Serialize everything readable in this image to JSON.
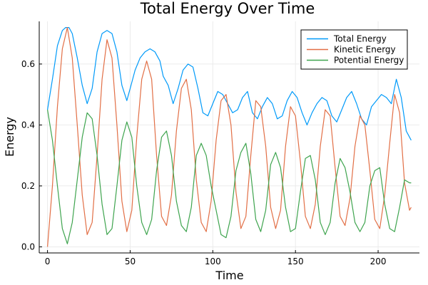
{
  "chart_data": {
    "type": "line",
    "title": "Total Energy Over Time",
    "xlabel": "Time",
    "ylabel": "Energy",
    "xlim": [
      -5,
      225
    ],
    "ylim": [
      -0.02,
      0.74
    ],
    "xticks": [
      0,
      50,
      100,
      150,
      200
    ],
    "yticks": [
      0.0,
      0.2,
      0.4,
      0.6
    ],
    "xtick_labels": [
      "0",
      "50",
      "100",
      "150",
      "200"
    ],
    "ytick_labels": [
      "0.0",
      "0.2",
      "0.4",
      "0.6"
    ],
    "grid": true,
    "legend_position": "top-right",
    "series": [
      {
        "name": "Total Energy",
        "color": "#009AF9",
        "x": [
          0,
          3,
          6,
          9,
          11,
          13,
          15,
          18,
          21,
          24,
          27,
          30,
          33,
          36,
          39,
          42,
          45,
          48,
          50,
          53,
          56,
          59,
          62,
          65,
          68,
          70,
          73,
          76,
          79,
          82,
          85,
          88,
          91,
          94,
          97,
          100,
          103,
          106,
          109,
          112,
          115,
          118,
          121,
          124,
          127,
          130,
          133,
          136,
          139,
          142,
          145,
          148,
          151,
          154,
          157,
          160,
          163,
          166,
          169,
          172,
          175,
          178,
          181,
          184,
          187,
          190,
          193,
          196,
          199,
          202,
          205,
          208,
          211,
          214,
          217,
          220
        ],
        "values": [
          0.45,
          0.55,
          0.66,
          0.71,
          0.72,
          0.72,
          0.7,
          0.62,
          0.53,
          0.47,
          0.52,
          0.64,
          0.7,
          0.71,
          0.7,
          0.64,
          0.53,
          0.48,
          0.52,
          0.58,
          0.62,
          0.64,
          0.65,
          0.64,
          0.61,
          0.56,
          0.53,
          0.47,
          0.52,
          0.58,
          0.6,
          0.59,
          0.52,
          0.44,
          0.43,
          0.47,
          0.51,
          0.5,
          0.47,
          0.44,
          0.45,
          0.49,
          0.51,
          0.44,
          0.42,
          0.46,
          0.49,
          0.47,
          0.42,
          0.43,
          0.48,
          0.51,
          0.49,
          0.44,
          0.4,
          0.44,
          0.47,
          0.49,
          0.48,
          0.43,
          0.41,
          0.45,
          0.49,
          0.51,
          0.47,
          0.42,
          0.4,
          0.46,
          0.48,
          0.5,
          0.49,
          0.47,
          0.55,
          0.49,
          0.38,
          0.35
        ]
      },
      {
        "name": "Kinetic Energy",
        "color": "#E26F46",
        "x": [
          0,
          3,
          6,
          9,
          12,
          15,
          18,
          21,
          24,
          27,
          30,
          33,
          36,
          39,
          42,
          45,
          48,
          51,
          54,
          57,
          60,
          63,
          66,
          69,
          72,
          75,
          78,
          81,
          84,
          87,
          90,
          93,
          96,
          99,
          102,
          105,
          108,
          111,
          114,
          117,
          120,
          123,
          126,
          129,
          132,
          135,
          138,
          141,
          144,
          147,
          150,
          153,
          156,
          159,
          162,
          165,
          168,
          171,
          174,
          177,
          180,
          183,
          186,
          189,
          192,
          195,
          198,
          201,
          204,
          207,
          210,
          213,
          216,
          219,
          220
        ],
        "values": [
          0.0,
          0.2,
          0.46,
          0.65,
          0.72,
          0.62,
          0.4,
          0.17,
          0.04,
          0.08,
          0.3,
          0.55,
          0.68,
          0.62,
          0.4,
          0.15,
          0.05,
          0.12,
          0.36,
          0.55,
          0.61,
          0.55,
          0.3,
          0.1,
          0.07,
          0.17,
          0.38,
          0.52,
          0.55,
          0.45,
          0.22,
          0.08,
          0.05,
          0.15,
          0.35,
          0.48,
          0.5,
          0.4,
          0.18,
          0.06,
          0.1,
          0.3,
          0.48,
          0.46,
          0.33,
          0.13,
          0.06,
          0.12,
          0.33,
          0.46,
          0.43,
          0.28,
          0.1,
          0.06,
          0.14,
          0.33,
          0.45,
          0.43,
          0.26,
          0.1,
          0.07,
          0.16,
          0.33,
          0.43,
          0.4,
          0.25,
          0.09,
          0.06,
          0.17,
          0.34,
          0.5,
          0.44,
          0.21,
          0.12,
          0.13
        ]
      },
      {
        "name": "Potential Energy",
        "color": "#3EA44E",
        "x": [
          0,
          3,
          6,
          9,
          12,
          15,
          18,
          21,
          24,
          27,
          30,
          33,
          36,
          39,
          42,
          45,
          48,
          51,
          54,
          57,
          60,
          63,
          66,
          69,
          72,
          75,
          78,
          81,
          84,
          87,
          90,
          93,
          96,
          99,
          102,
          105,
          108,
          111,
          114,
          117,
          120,
          123,
          126,
          129,
          132,
          135,
          138,
          141,
          144,
          147,
          150,
          153,
          156,
          159,
          162,
          165,
          168,
          171,
          174,
          177,
          180,
          183,
          186,
          189,
          192,
          195,
          198,
          201,
          204,
          207,
          210,
          213,
          216,
          219,
          220
        ],
        "values": [
          0.45,
          0.35,
          0.2,
          0.06,
          0.01,
          0.08,
          0.22,
          0.36,
          0.44,
          0.42,
          0.3,
          0.14,
          0.04,
          0.06,
          0.2,
          0.35,
          0.41,
          0.36,
          0.2,
          0.08,
          0.04,
          0.09,
          0.25,
          0.36,
          0.38,
          0.3,
          0.15,
          0.07,
          0.05,
          0.13,
          0.3,
          0.34,
          0.3,
          0.2,
          0.12,
          0.04,
          0.03,
          0.1,
          0.25,
          0.31,
          0.34,
          0.24,
          0.09,
          0.05,
          0.12,
          0.27,
          0.31,
          0.26,
          0.13,
          0.05,
          0.06,
          0.18,
          0.29,
          0.3,
          0.22,
          0.08,
          0.04,
          0.08,
          0.21,
          0.29,
          0.26,
          0.18,
          0.08,
          0.05,
          0.08,
          0.2,
          0.25,
          0.26,
          0.14,
          0.06,
          0.05,
          0.13,
          0.22,
          0.21,
          0.21
        ]
      }
    ]
  }
}
